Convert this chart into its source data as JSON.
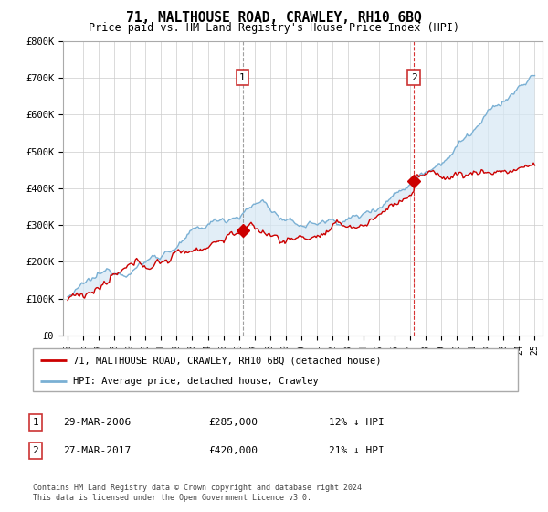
{
  "title": "71, MALTHOUSE ROAD, CRAWLEY, RH10 6BQ",
  "subtitle": "Price paid vs. HM Land Registry's House Price Index (HPI)",
  "legend_line1": "71, MALTHOUSE ROAD, CRAWLEY, RH10 6BQ (detached house)",
  "legend_line2": "HPI: Average price, detached house, Crawley",
  "table_rows": [
    {
      "num": "1",
      "date": "29-MAR-2006",
      "price": "£285,000",
      "hpi": "12% ↓ HPI"
    },
    {
      "num": "2",
      "date": "27-MAR-2017",
      "price": "£420,000",
      "hpi": "21% ↓ HPI"
    }
  ],
  "footer": "Contains HM Land Registry data © Crown copyright and database right 2024.\nThis data is licensed under the Open Government Licence v3.0.",
  "red_color": "#cc0000",
  "blue_color": "#7ab0d4",
  "fill_color": "#d6e8f5",
  "marker_color": "#cc0000",
  "ylim": [
    0,
    800000
  ],
  "yticks": [
    0,
    100000,
    200000,
    300000,
    400000,
    500000,
    600000,
    700000,
    800000
  ],
  "ytick_labels": [
    "£0",
    "£100K",
    "£200K",
    "£300K",
    "£400K",
    "£500K",
    "£600K",
    "£700K",
    "£800K"
  ],
  "year_start": 1995,
  "year_end": 2025,
  "purchase1_year": 2006.23,
  "purchase1_price": 285000,
  "purchase2_year": 2017.23,
  "purchase2_price": 420000
}
